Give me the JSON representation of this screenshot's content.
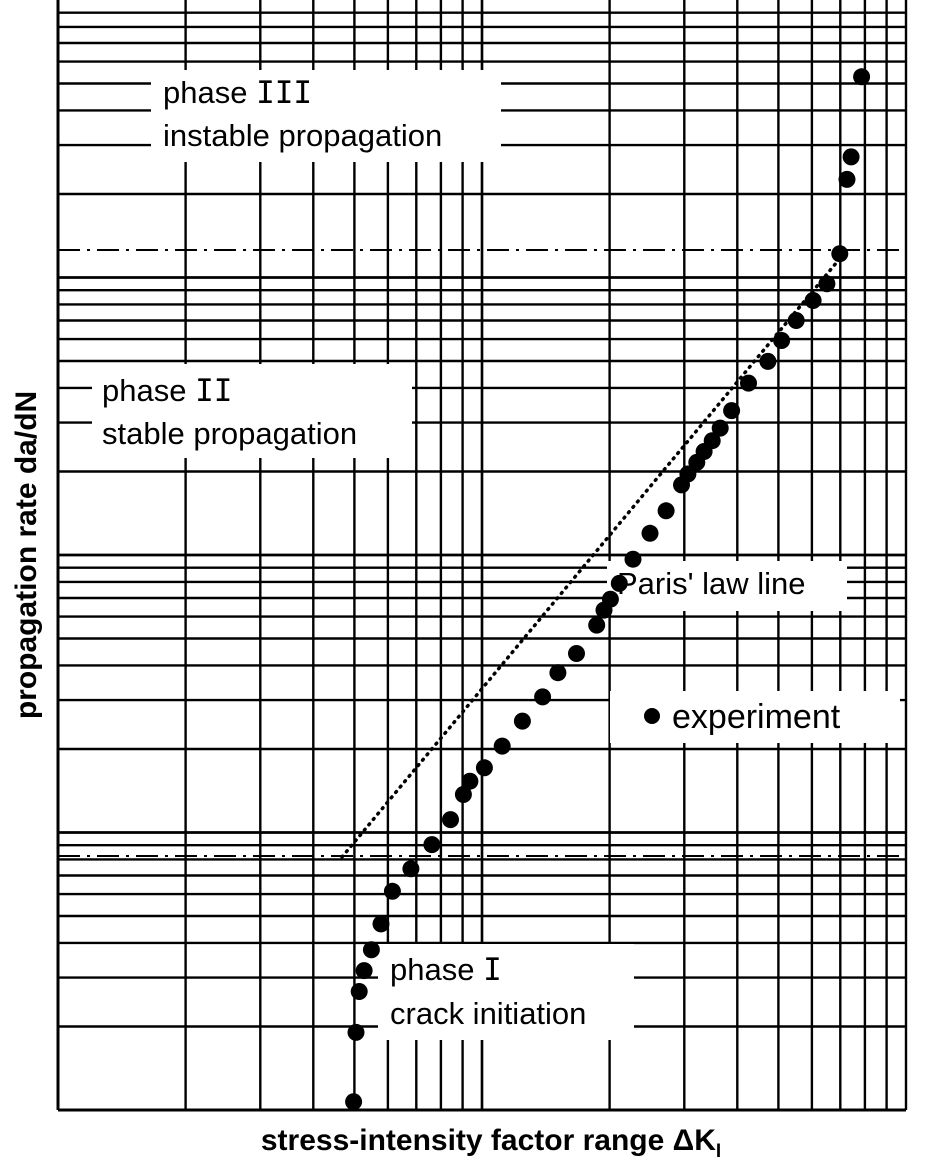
{
  "chart_data": {
    "type": "scatter",
    "x_scale": "log",
    "y_scale": "log",
    "grid": true,
    "xlabel": "stress-intensity factor range ΔK",
    "xlabel_subscript": "I",
    "ylabel": "propagation rate da/dN",
    "annotations": {
      "phase3": {
        "title": "phase ",
        "numeral": "III",
        "subtitle": "instable propagation"
      },
      "phase2": {
        "title": "phase ",
        "numeral": "II",
        "subtitle": "stable propagation"
      },
      "phase1": {
        "title": "phase ",
        "numeral": "I",
        "subtitle": "crack initiation"
      },
      "paris": "Paris' law line"
    },
    "legend": {
      "label": "experiment",
      "position": "right"
    },
    "series": [
      {
        "name": "experiment",
        "x": [
          0.366,
          0.369,
          0.373,
          0.379,
          0.388,
          0.4,
          0.414,
          0.437,
          0.463,
          0.486,
          0.502,
          0.51,
          0.528,
          0.55,
          0.575,
          0.6,
          0.619,
          0.642,
          0.667,
          0.676,
          0.684,
          0.695,
          0.712,
          0.733,
          0.753,
          0.772,
          0.78,
          0.791,
          0.8,
          0.81,
          0.82,
          0.834,
          0.855,
          0.879,
          0.896,
          0.914,
          0.935,
          0.952,
          0.968,
          0.977,
          0.982,
          0.995
        ],
        "y": [
          0.01,
          0.093,
          0.142,
          0.167,
          0.192,
          0.223,
          0.262,
          0.289,
          0.318,
          0.348,
          0.378,
          0.394,
          0.41,
          0.436,
          0.466,
          0.495,
          0.524,
          0.547,
          0.581,
          0.599,
          0.612,
          0.631,
          0.66,
          0.691,
          0.718,
          0.749,
          0.762,
          0.776,
          0.789,
          0.802,
          0.817,
          0.838,
          0.871,
          0.897,
          0.922,
          0.946,
          0.97,
          0.99,
          1.026,
          1.115,
          1.142,
          1.238
        ]
      }
    ]
  }
}
